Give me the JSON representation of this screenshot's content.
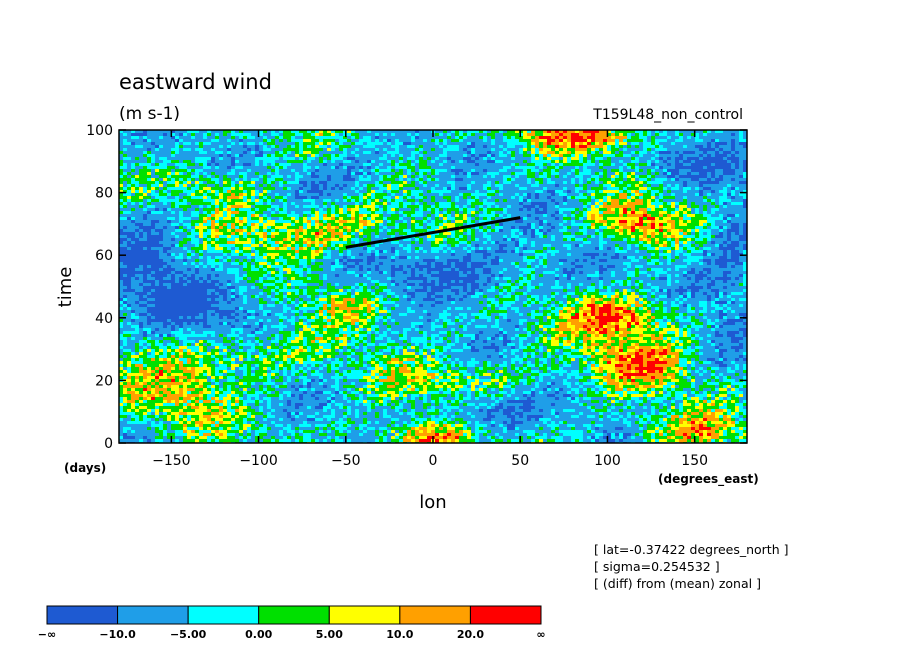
{
  "chart_data": {
    "type": "heatmap",
    "title": "eastward wind",
    "subtitle": "(m s-1)",
    "run_label": "T159L48_non_control",
    "xlabel": "lon",
    "x_units": "(degrees_east)",
    "ylabel": "time",
    "y_units": "(days)",
    "xlim": [
      -180,
      180
    ],
    "ylim": [
      0,
      100
    ],
    "x_ticks": [
      -150,
      -100,
      -50,
      0,
      50,
      100,
      150
    ],
    "y_ticks": [
      0,
      20,
      40,
      60,
      80,
      100
    ],
    "annotations": [
      "[ lat=-0.37422 degrees_north ]",
      "[ sigma=0.254532 ]",
      "[ (diff) from (mean) zonal ]"
    ],
    "overlay_line": {
      "x": [
        -50,
        50
      ],
      "y": [
        62.5,
        72
      ]
    },
    "levels": [
      {
        "label": "-∞",
        "color": "#1e5ad2"
      },
      {
        "label": "-10.0",
        "color": "#1f9ee8"
      },
      {
        "label": "-5.00",
        "color": "#00ffff"
      },
      {
        "label": "0.00",
        "color": "#00e000"
      },
      {
        "label": "5.00",
        "color": "#ffff00"
      },
      {
        "label": "10.0",
        "color": "#ffa000"
      },
      {
        "label": "20.0",
        "color": "#ff0000"
      },
      {
        "label": "∞",
        "color": ""
      }
    ],
    "warm_regions": [
      {
        "lon": 110,
        "t": 40,
        "rx": 32,
        "ry": 7,
        "strength": 1.3
      },
      {
        "lon": 115,
        "t": 70,
        "rx": 25,
        "ry": 7,
        "strength": 1.3
      },
      {
        "lon": 90,
        "t": 98,
        "rx": 45,
        "ry": 5,
        "strength": 1.1
      },
      {
        "lon": -72,
        "t": 68,
        "rx": 45,
        "ry": 8,
        "strength": 1.15
      },
      {
        "lon": -125,
        "t": 81,
        "rx": 30,
        "ry": 6,
        "strength": 0.9
      },
      {
        "lon": -5,
        "t": 2,
        "rx": 30,
        "ry": 4,
        "strength": 1.2
      },
      {
        "lon": 20,
        "t": 20,
        "rx": 40,
        "ry": 6,
        "strength": 0.75
      },
      {
        "lon": -150,
        "t": 15,
        "rx": 30,
        "ry": 10,
        "strength": 0.7
      },
      {
        "lon": 145,
        "t": 4,
        "rx": 30,
        "ry": 5,
        "strength": 0.9
      },
      {
        "lon": 115,
        "t": 25,
        "rx": 30,
        "ry": 8,
        "strength": 1.0
      },
      {
        "lon": -40,
        "t": 45,
        "rx": 40,
        "ry": 6,
        "strength": 0.7
      },
      {
        "lon": -110,
        "t": 28,
        "rx": 40,
        "ry": 8,
        "strength": 0.8
      }
    ],
    "cold_regions": [
      {
        "lon": 20,
        "t": 55,
        "rx": 50,
        "ry": 10,
        "strength": 1.0
      },
      {
        "lon": -160,
        "t": 62,
        "rx": 25,
        "ry": 20,
        "strength": 0.9
      },
      {
        "lon": 30,
        "t": 10,
        "rx": 25,
        "ry": 8,
        "strength": 1.0
      },
      {
        "lon": -120,
        "t": 45,
        "rx": 40,
        "ry": 10,
        "strength": 0.8
      },
      {
        "lon": 170,
        "t": 60,
        "rx": 20,
        "ry": 20,
        "strength": 0.9
      },
      {
        "lon": 140,
        "t": 90,
        "rx": 30,
        "ry": 8,
        "strength": 0.8
      },
      {
        "lon": -50,
        "t": 85,
        "rx": 35,
        "ry": 8,
        "strength": 0.7
      }
    ]
  }
}
